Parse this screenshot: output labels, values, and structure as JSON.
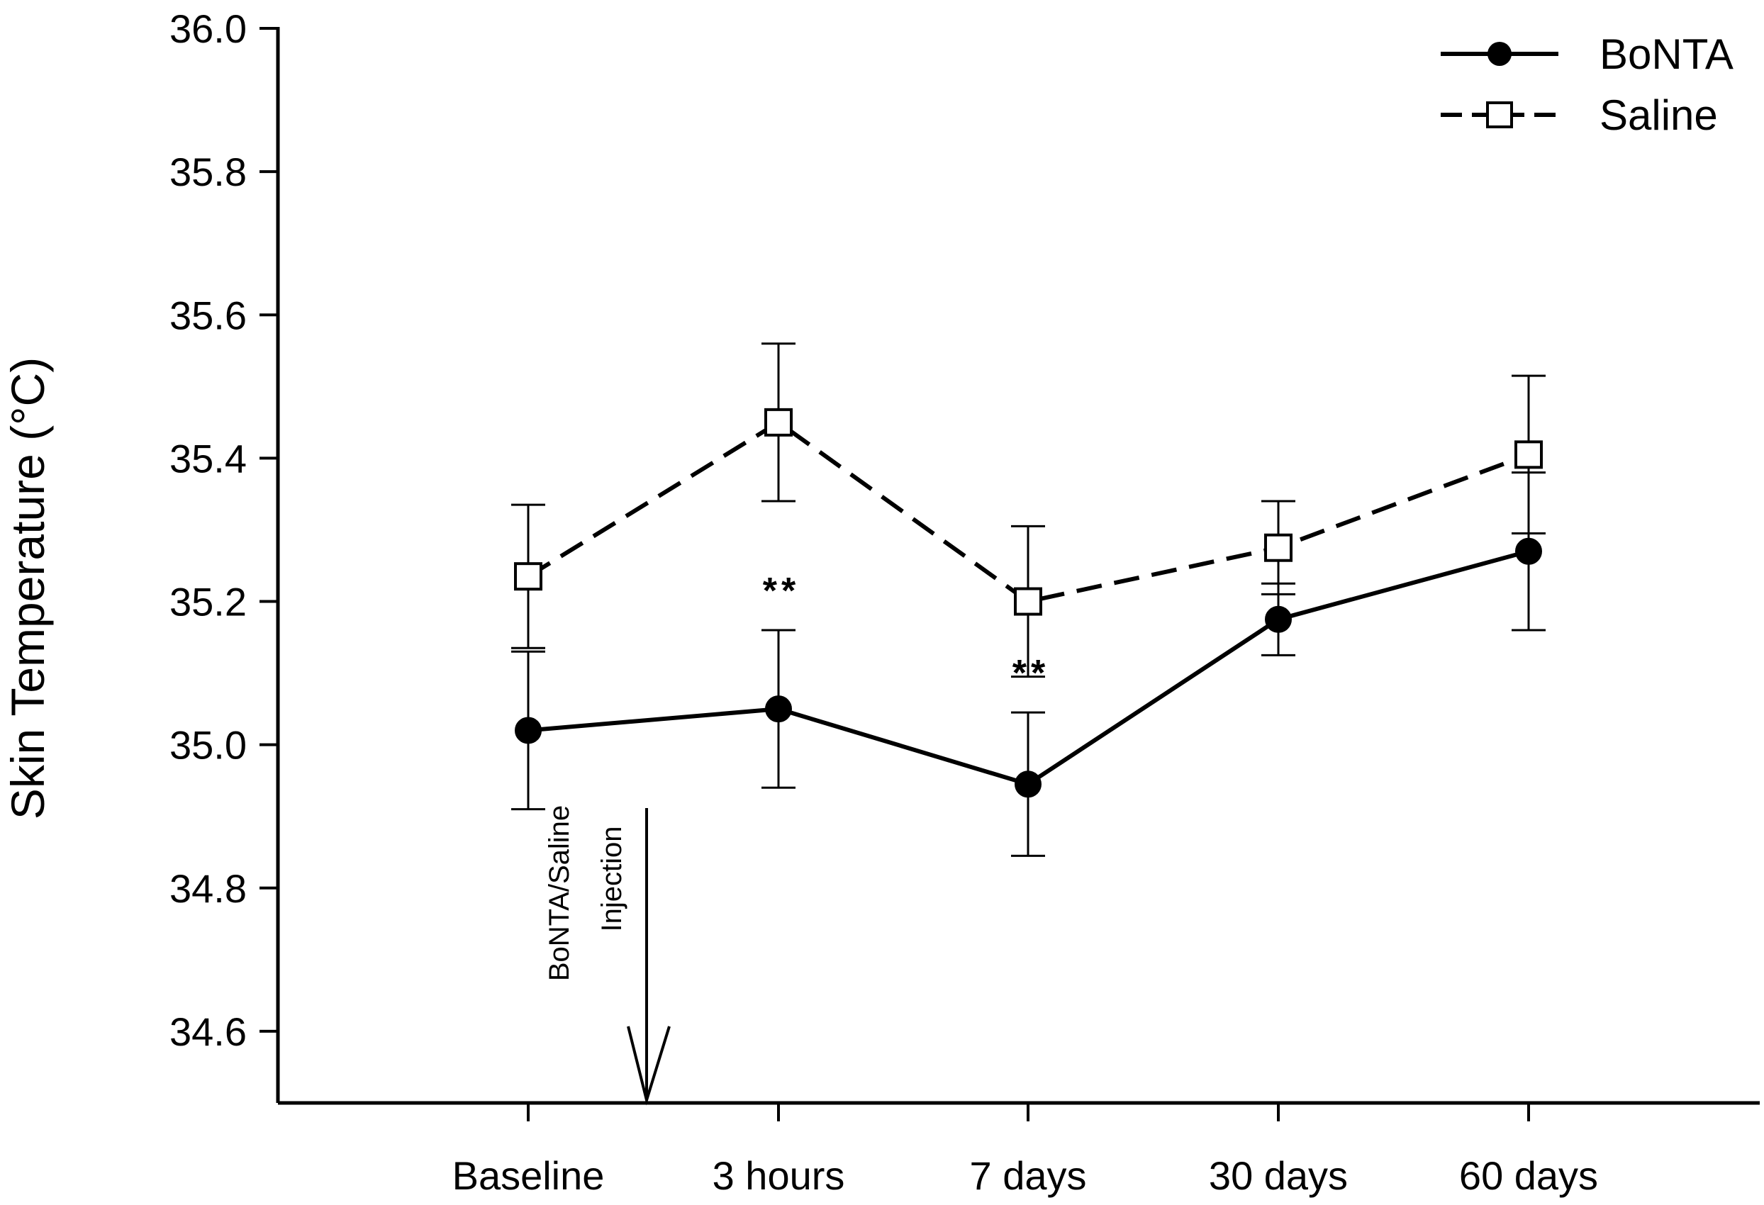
{
  "chart_data": {
    "type": "line",
    "title": "",
    "xlabel": "",
    "ylabel": "Skin Temperature (°C)",
    "ylim": [
      34.5,
      36.0
    ],
    "yticks": [
      34.6,
      34.8,
      35.0,
      35.2,
      35.4,
      35.6,
      35.8,
      36.0
    ],
    "ytick_labels": [
      "34.6",
      "34.8",
      "35.0",
      "35.2",
      "35.4",
      "35.6",
      "35.8",
      "36.0"
    ],
    "categories": [
      "Baseline",
      "3 hours",
      "7 days",
      "30 days",
      "60 days"
    ],
    "series": [
      {
        "name": "BoNTA",
        "marker": "filled-circle",
        "line": "solid",
        "color": "#000000",
        "values": [
          35.02,
          35.05,
          34.945,
          35.175,
          35.27
        ],
        "errors": [
          0.11,
          0.11,
          0.1,
          0.05,
          0.11
        ]
      },
      {
        "name": "Saline",
        "marker": "open-square",
        "line": "dashed",
        "color": "#000000",
        "values": [
          35.235,
          35.45,
          35.2,
          35.275,
          35.405
        ],
        "errors": [
          0.1,
          0.11,
          0.105,
          0.065,
          0.11
        ]
      }
    ],
    "significance": [
      {
        "category_index": 1,
        "text": "**"
      },
      {
        "category_index": 2,
        "text": "**"
      }
    ],
    "annotation": {
      "line1": "BoNTA/Saline",
      "line2": "Injection"
    },
    "legend_position": "top-right",
    "grid": false
  }
}
